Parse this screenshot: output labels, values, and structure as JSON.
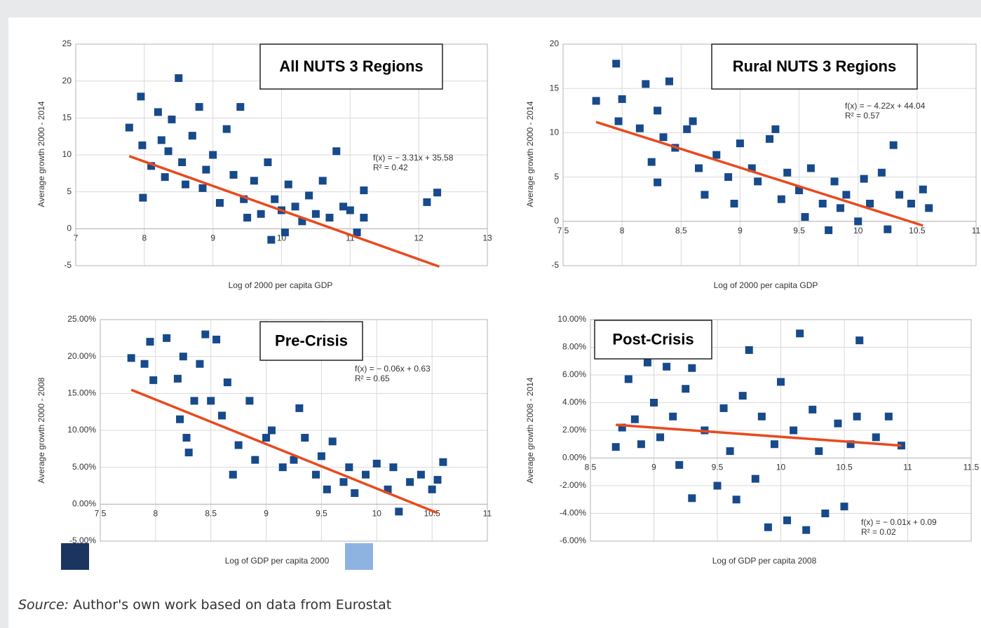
{
  "chart_data": [
    {
      "type": "scatter",
      "title": "All NUTS 3 Regions",
      "x_label": "Log of 2000 per capita GDP",
      "y_label": "Average growth 2000 - 2014",
      "annotations": [
        "f(x) = − 3.31x + 35.58",
        "R² = 0.42"
      ],
      "color": "#174a8b",
      "grid": true,
      "xlim": [
        7,
        13
      ],
      "xticks": [
        7,
        8,
        9,
        10,
        11,
        12,
        13
      ],
      "ylim": [
        -5,
        25
      ],
      "yticks": [
        -5,
        0,
        5,
        10,
        15,
        20,
        25
      ],
      "x": [
        7.78,
        7.95,
        7.97,
        7.98,
        8.1,
        8.2,
        8.25,
        8.3,
        8.35,
        8.4,
        8.5,
        8.55,
        8.6,
        8.7,
        8.8,
        8.85,
        8.9,
        9.0,
        9.1,
        9.2,
        9.3,
        9.4,
        9.45,
        9.5,
        9.6,
        9.7,
        9.8,
        9.85,
        9.9,
        10.0,
        10.05,
        10.1,
        10.2,
        10.3,
        10.4,
        10.5,
        10.6,
        10.7,
        10.8,
        10.9,
        11.0,
        11.1,
        11.2,
        11.2,
        12.12,
        12.27
      ],
      "values": [
        13.7,
        17.9,
        11.3,
        4.2,
        8.5,
        15.8,
        12,
        7,
        10.5,
        14.8,
        20.4,
        9,
        6,
        12.6,
        16.5,
        5.5,
        8,
        10,
        3.5,
        13.5,
        7.3,
        16.5,
        4,
        1.5,
        6.5,
        2,
        9,
        -1.5,
        4,
        2.5,
        -0.5,
        6,
        3,
        1,
        4.5,
        2,
        6.5,
        1.5,
        10.5,
        3,
        2.5,
        -0.5,
        5.2,
        1.5,
        3.6,
        4.9
      ],
      "trend": {
        "color": "#e84a1e",
        "x": [
          7.78,
          12.3
        ],
        "values": [
          9.83,
          -5.13
        ]
      }
    },
    {
      "type": "scatter",
      "title": "Rural NUTS 3 Regions",
      "x_label": "Log of 2000 per capita GDP",
      "y_label": "Average growth 2000 - 2014",
      "annotations": [
        "f(x) = − 4.22x + 44.04",
        "R² = 0.57"
      ],
      "color": "#174a8b",
      "grid": true,
      "xlim": [
        7.5,
        11
      ],
      "xticks": [
        7.5,
        8,
        8.5,
        9,
        9.5,
        10,
        10.5,
        11
      ],
      "ylim": [
        -5,
        20
      ],
      "yticks": [
        -5,
        0,
        5,
        10,
        15,
        20
      ],
      "x": [
        7.78,
        7.95,
        7.97,
        8.0,
        8.15,
        8.2,
        8.25,
        8.3,
        8.3,
        8.35,
        8.4,
        8.45,
        8.55,
        8.6,
        8.65,
        8.7,
        8.8,
        8.9,
        8.95,
        9.0,
        9.1,
        9.15,
        9.25,
        9.3,
        9.35,
        9.4,
        9.5,
        9.55,
        9.6,
        9.7,
        9.75,
        9.8,
        9.85,
        9.9,
        10.0,
        10.05,
        10.1,
        10.2,
        10.25,
        10.3,
        10.35,
        10.45,
        10.55,
        10.6
      ],
      "values": [
        13.6,
        17.8,
        11.3,
        13.8,
        10.5,
        15.5,
        6.7,
        12.5,
        4.4,
        9.5,
        15.8,
        8.3,
        10.4,
        11.3,
        6,
        3,
        7.5,
        5,
        2,
        8.8,
        6,
        4.5,
        9.3,
        10.4,
        2.5,
        5.5,
        3.5,
        0.5,
        6,
        2,
        -1,
        4.5,
        1.5,
        3,
        0,
        4.8,
        2,
        5.5,
        -0.9,
        8.6,
        3,
        2,
        3.6,
        1.5
      ],
      "trend": {
        "color": "#e84a1e",
        "x": [
          7.78,
          10.55
        ],
        "values": [
          11.21,
          -0.48
        ]
      }
    },
    {
      "type": "scatter",
      "title": "Pre-Crisis",
      "x_label": "Log of GDP per capita 2000",
      "y_label": "Average growth 2000 - 2008",
      "annotations": [
        "f(x) = − 0.06x + 0.63",
        "R² = 0.65"
      ],
      "color": "#174a8b",
      "grid": true,
      "xlim": [
        7.5,
        11
      ],
      "xticks": [
        7.5,
        8,
        8.5,
        9,
        9.5,
        10,
        10.5,
        11
      ],
      "ylim": [
        -0.05,
        0.25
      ],
      "yticks": [
        {
          "value": -0.05,
          "label": "-5.00%"
        },
        {
          "value": 0,
          "label": "0.00%"
        },
        {
          "value": 0.05,
          "label": "5.00%"
        },
        {
          "value": 0.1,
          "label": "10.00%"
        },
        {
          "value": 0.15,
          "label": "15.00%"
        },
        {
          "value": 0.2,
          "label": "20.00%"
        },
        {
          "value": 0.25,
          "label": "25.00%"
        }
      ],
      "x": [
        7.78,
        7.9,
        7.95,
        7.98,
        8.1,
        8.2,
        8.22,
        8.25,
        8.28,
        8.3,
        8.35,
        8.4,
        8.45,
        8.5,
        8.55,
        8.6,
        8.65,
        8.7,
        8.75,
        8.85,
        8.9,
        9.0,
        9.05,
        9.15,
        9.25,
        9.3,
        9.35,
        9.45,
        9.5,
        9.55,
        9.6,
        9.7,
        9.75,
        9.8,
        9.9,
        10.0,
        10.1,
        10.15,
        10.2,
        10.3,
        10.4,
        10.5,
        10.55,
        10.6
      ],
      "values": [
        0.198,
        0.19,
        0.22,
        0.168,
        0.225,
        0.17,
        0.115,
        0.2,
        0.09,
        0.07,
        0.14,
        0.19,
        0.23,
        0.14,
        0.223,
        0.12,
        0.165,
        0.04,
        0.08,
        0.14,
        0.06,
        0.09,
        0.1,
        0.05,
        0.06,
        0.13,
        0.09,
        0.04,
        0.065,
        0.02,
        0.085,
        0.03,
        0.05,
        0.015,
        0.04,
        0.055,
        0.02,
        0.05,
        -0.01,
        0.03,
        0.04,
        0.02,
        0.033,
        0.057
      ],
      "trend": {
        "color": "#e84a1e",
        "x": [
          7.78,
          10.55
        ],
        "values": [
          0.155,
          -0.012
        ]
      }
    },
    {
      "type": "scatter",
      "title": "Post-Crisis",
      "x_label": "Log of GDP per capita 2008",
      "y_label": "Average growth 2008 - 2014",
      "annotations": [
        "f(x) = − 0.01x + 0.09",
        "R² = 0.02"
      ],
      "color": "#174a8b",
      "grid": true,
      "xlim": [
        8.5,
        11.5
      ],
      "xticks": [
        8.5,
        9,
        9.5,
        10,
        10.5,
        11,
        11.5
      ],
      "ylim": [
        -0.06,
        0.1
      ],
      "yticks": [
        {
          "value": -0.06,
          "label": "-6.00%"
        },
        {
          "value": -0.04,
          "label": "-4.00%"
        },
        {
          "value": -0.02,
          "label": "-2.00%"
        },
        {
          "value": 0,
          "label": "0.00%"
        },
        {
          "value": 0.02,
          "label": "2.00%"
        },
        {
          "value": 0.04,
          "label": "4.00%"
        },
        {
          "value": 0.06,
          "label": "6.00%"
        },
        {
          "value": 0.08,
          "label": "8.00%"
        },
        {
          "value": 0.1,
          "label": "10.00%"
        }
      ],
      "x": [
        8.7,
        8.75,
        8.8,
        8.85,
        8.9,
        8.95,
        9.0,
        9.05,
        9.1,
        9.15,
        9.2,
        9.25,
        9.3,
        9.3,
        9.4,
        9.5,
        9.55,
        9.6,
        9.65,
        9.7,
        9.75,
        9.8,
        9.85,
        9.9,
        9.95,
        10.0,
        10.05,
        10.1,
        10.15,
        10.2,
        10.25,
        10.3,
        10.35,
        10.45,
        10.5,
        10.55,
        10.6,
        10.62,
        10.75,
        10.85,
        10.95
      ],
      "values": [
        0.008,
        0.022,
        0.057,
        0.028,
        0.01,
        0.069,
        0.04,
        0.015,
        0.066,
        0.03,
        -0.005,
        0.05,
        0.065,
        -0.029,
        0.02,
        -0.02,
        0.036,
        0.005,
        -0.03,
        0.045,
        0.078,
        -0.015,
        0.03,
        -0.05,
        0.01,
        0.055,
        -0.045,
        0.02,
        0.09,
        -0.052,
        0.035,
        0.005,
        -0.04,
        0.025,
        -0.035,
        0.01,
        0.03,
        0.085,
        0.015,
        0.03,
        0.009
      ],
      "trend": {
        "color": "#e84a1e",
        "x": [
          8.7,
          10.95
        ],
        "values": [
          0.024,
          0.009
        ]
      }
    }
  ],
  "source": {
    "label": "Source:",
    "text": " Author's own work based on data from Eurostat"
  }
}
